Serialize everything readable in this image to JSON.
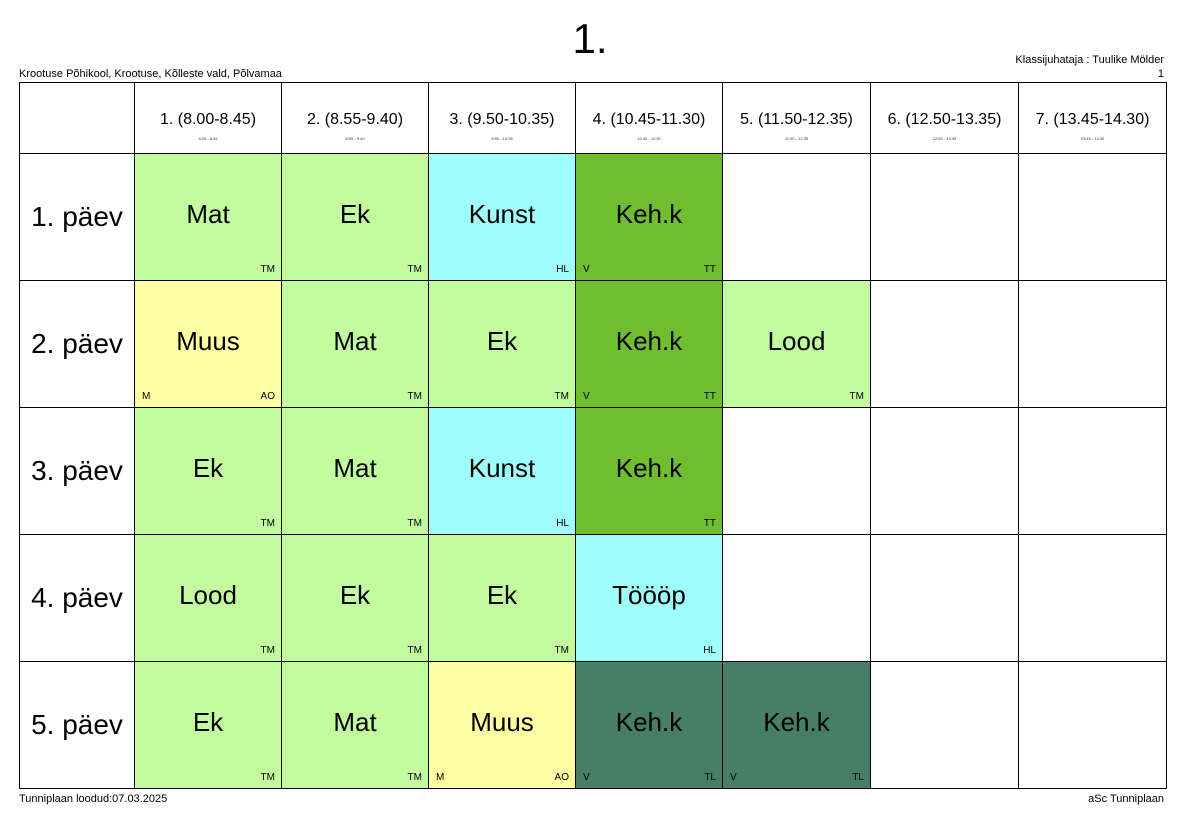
{
  "header": {
    "class_name": "1.",
    "school": "Krootuse Põhikool, Krootuse, Kõlleste vald, Põlvamaa",
    "class_teacher": "Klassijuhataja : Tuulike Mölder",
    "page_number": "1"
  },
  "footer": {
    "created": "Tunniplaan loodud:07.03.2025",
    "software": "aSc Tunniplaan"
  },
  "periods": [
    {
      "label": "1. (8.00-8.45)",
      "small": "8:00 - 8:45"
    },
    {
      "label": "2. (8.55-9.40)",
      "small": "8:55 - 9:40"
    },
    {
      "label": "3. (9.50-10.35)",
      "small": "9:50 - 10:35"
    },
    {
      "label": "4. (10.45-11.30)",
      "small": "10:45 - 11:30"
    },
    {
      "label": "5. (11.50-12.35)",
      "small": "11:50 - 12:35"
    },
    {
      "label": "6. (12.50-13.35)",
      "small": "12:50 - 13:35"
    },
    {
      "label": "7. (13.45-14.30)",
      "small": "13:45 - 14:30"
    }
  ],
  "days": [
    {
      "label": "1. päev",
      "lessons": [
        {
          "subject": "Mat",
          "teacher": "TM",
          "room": "",
          "color": "#c3fb9f"
        },
        {
          "subject": "Ek",
          "teacher": "TM",
          "room": "",
          "color": "#c3fb9f"
        },
        {
          "subject": "Kunst",
          "teacher": "HL",
          "room": "",
          "color": "#9ffffd"
        },
        {
          "subject": "Keh.k",
          "teacher": "TT",
          "room": "V",
          "color": "#6ebe2f"
        },
        {
          "subject": "",
          "teacher": "",
          "room": "",
          "color": "#ffffff"
        },
        {
          "subject": "",
          "teacher": "",
          "room": "",
          "color": "#ffffff"
        },
        {
          "subject": "",
          "teacher": "",
          "room": "",
          "color": "#ffffff"
        }
      ]
    },
    {
      "label": "2. päev",
      "lessons": [
        {
          "subject": "Muus",
          "teacher": "AO",
          "room": "M",
          "color": "#fefea3"
        },
        {
          "subject": "Mat",
          "teacher": "TM",
          "room": "",
          "color": "#c3fb9f"
        },
        {
          "subject": "Ek",
          "teacher": "TM",
          "room": "",
          "color": "#c3fb9f"
        },
        {
          "subject": "Keh.k",
          "teacher": "TT",
          "room": "V",
          "color": "#6ebe2f"
        },
        {
          "subject": "Lood",
          "teacher": "TM",
          "room": "",
          "color": "#c3fb9f"
        },
        {
          "subject": "",
          "teacher": "",
          "room": "",
          "color": "#ffffff"
        },
        {
          "subject": "",
          "teacher": "",
          "room": "",
          "color": "#ffffff"
        }
      ]
    },
    {
      "label": "3. päev",
      "lessons": [
        {
          "subject": "Ek",
          "teacher": "TM",
          "room": "",
          "color": "#c3fb9f"
        },
        {
          "subject": "Mat",
          "teacher": "TM",
          "room": "",
          "color": "#c3fb9f"
        },
        {
          "subject": "Kunst",
          "teacher": "HL",
          "room": "",
          "color": "#9ffffd"
        },
        {
          "subject": "Keh.k",
          "teacher": "TT",
          "room": "",
          "color": "#6ebe2f"
        },
        {
          "subject": "",
          "teacher": "",
          "room": "",
          "color": "#ffffff"
        },
        {
          "subject": "",
          "teacher": "",
          "room": "",
          "color": "#ffffff"
        },
        {
          "subject": "",
          "teacher": "",
          "room": "",
          "color": "#ffffff"
        }
      ]
    },
    {
      "label": "4. päev",
      "lessons": [
        {
          "subject": "Lood",
          "teacher": "TM",
          "room": "",
          "color": "#c3fb9f"
        },
        {
          "subject": "Ek",
          "teacher": "TM",
          "room": "",
          "color": "#c3fb9f"
        },
        {
          "subject": "Ek",
          "teacher": "TM",
          "room": "",
          "color": "#c3fb9f"
        },
        {
          "subject": "Töööp",
          "teacher": "HL",
          "room": "",
          "color": "#9ffffd"
        },
        {
          "subject": "",
          "teacher": "",
          "room": "",
          "color": "#ffffff"
        },
        {
          "subject": "",
          "teacher": "",
          "room": "",
          "color": "#ffffff"
        },
        {
          "subject": "",
          "teacher": "",
          "room": "",
          "color": "#ffffff"
        }
      ]
    },
    {
      "label": "5. päev",
      "lessons": [
        {
          "subject": "Ek",
          "teacher": "TM",
          "room": "",
          "color": "#c3fb9f"
        },
        {
          "subject": "Mat",
          "teacher": "TM",
          "room": "",
          "color": "#c3fb9f"
        },
        {
          "subject": "Muus",
          "teacher": "AO",
          "room": "M",
          "color": "#fefea3"
        },
        {
          "subject": "Keh.k",
          "teacher": "TL",
          "room": "V",
          "color": "#467e67"
        },
        {
          "subject": "Keh.k",
          "teacher": "TL",
          "room": "V",
          "color": "#467e67"
        },
        {
          "subject": "",
          "teacher": "",
          "room": "",
          "color": "#ffffff"
        },
        {
          "subject": "",
          "teacher": "",
          "room": "",
          "color": "#ffffff"
        }
      ]
    }
  ]
}
